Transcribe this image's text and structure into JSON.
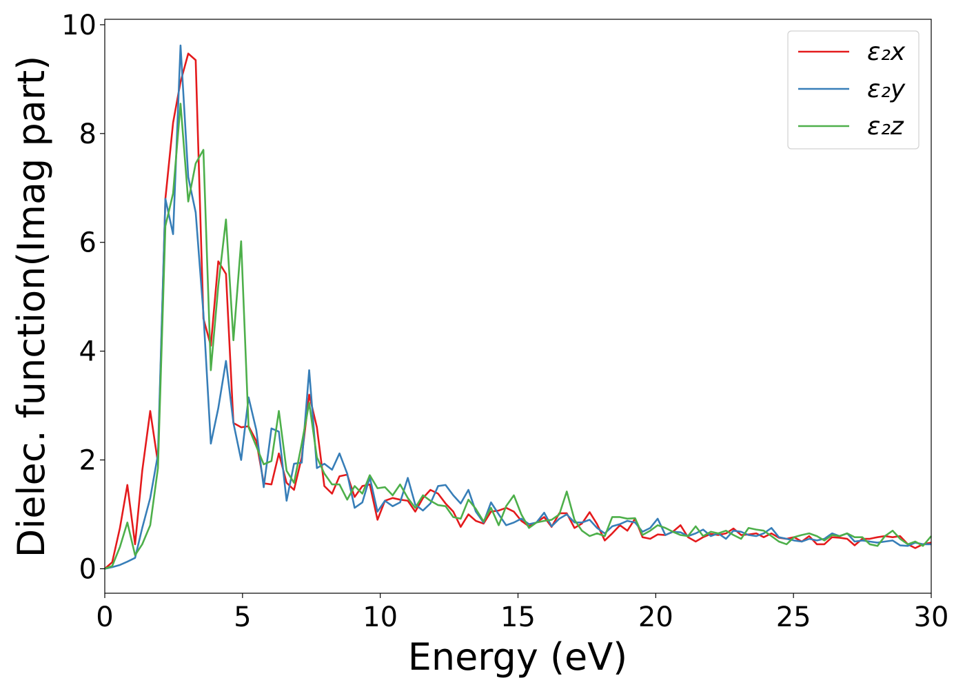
{
  "chart_data": {
    "type": "line",
    "title": "",
    "xlabel": "Energy (eV)",
    "ylabel": "Dielec. function(Imag part)",
    "xlim": [
      0,
      30
    ],
    "ylim": [
      -0.45,
      10.1
    ],
    "xticks": [
      0,
      5,
      10,
      15,
      20,
      25,
      30
    ],
    "yticks": [
      0,
      2,
      4,
      6,
      8,
      10
    ],
    "xtick_labels": [
      "0",
      "5",
      "10",
      "15",
      "20",
      "25",
      "30"
    ],
    "ytick_labels": [
      "0",
      "2",
      "4",
      "6",
      "8",
      "10"
    ],
    "grid": false,
    "legend_position": "top-right",
    "x": [
      0,
      0.27,
      0.55,
      0.82,
      1.1,
      1.36,
      1.65,
      1.93,
      2.2,
      2.48,
      2.75,
      3.03,
      3.3,
      3.58,
      3.85,
      4.12,
      4.4,
      4.67,
      4.95,
      5.22,
      5.5,
      5.77,
      6.05,
      6.32,
      6.6,
      6.87,
      7.15,
      7.42,
      7.7,
      7.97,
      8.25,
      8.52,
      8.8,
      9.07,
      9.35,
      9.62,
      9.9,
      10.17,
      10.45,
      10.72,
      11.0,
      11.27,
      11.55,
      11.82,
      12.1,
      12.37,
      12.65,
      12.92,
      13.2,
      13.47,
      13.75,
      14.02,
      14.3,
      14.57,
      14.85,
      15.12,
      15.4,
      15.67,
      15.95,
      16.22,
      16.5,
      16.77,
      17.05,
      17.32,
      17.6,
      17.87,
      18.15,
      18.42,
      18.7,
      18.97,
      19.25,
      19.52,
      19.8,
      20.07,
      20.35,
      20.62,
      20.9,
      21.17,
      21.45,
      21.72,
      22.0,
      22.27,
      22.55,
      22.82,
      23.1,
      23.37,
      23.65,
      23.92,
      24.2,
      24.47,
      24.75,
      25.02,
      25.3,
      25.57,
      25.85,
      26.12,
      26.4,
      26.67,
      26.95,
      27.22,
      27.5,
      27.77,
      28.05,
      28.32,
      28.6,
      28.87,
      29.15,
      29.42,
      29.7,
      30.0
    ],
    "series": [
      {
        "name": "ε₂x",
        "color": "#e41a1c",
        "values": [
          0.0,
          0.12,
          0.75,
          1.54,
          0.45,
          1.8,
          2.9,
          1.95,
          6.8,
          8.2,
          8.95,
          9.47,
          9.35,
          4.6,
          4.1,
          5.65,
          5.42,
          2.68,
          2.6,
          2.62,
          2.35,
          1.57,
          1.55,
          2.12,
          1.58,
          1.45,
          2.05,
          3.2,
          2.6,
          1.52,
          1.38,
          1.7,
          1.73,
          1.32,
          1.52,
          1.55,
          0.9,
          1.25,
          1.3,
          1.27,
          1.25,
          1.05,
          1.3,
          1.45,
          1.38,
          1.2,
          1.05,
          0.77,
          1.0,
          0.88,
          0.83,
          1.05,
          1.07,
          1.12,
          1.05,
          0.88,
          0.78,
          0.85,
          0.95,
          0.77,
          1.02,
          1.02,
          0.75,
          0.83,
          1.04,
          0.82,
          0.52,
          0.65,
          0.8,
          0.7,
          0.92,
          0.58,
          0.55,
          0.63,
          0.62,
          0.68,
          0.8,
          0.58,
          0.5,
          0.58,
          0.64,
          0.62,
          0.65,
          0.74,
          0.62,
          0.63,
          0.65,
          0.58,
          0.65,
          0.57,
          0.55,
          0.58,
          0.5,
          0.6,
          0.45,
          0.45,
          0.58,
          0.57,
          0.55,
          0.43,
          0.55,
          0.55,
          0.58,
          0.6,
          0.58,
          0.6,
          0.45,
          0.38,
          0.45,
          0.48
        ]
      },
      {
        "name": "ε₂y",
        "color": "#377eb8",
        "values": [
          0.0,
          0.03,
          0.07,
          0.13,
          0.2,
          0.75,
          1.3,
          2.1,
          6.8,
          6.15,
          9.62,
          7.2,
          6.55,
          4.7,
          2.3,
          2.95,
          3.82,
          2.68,
          2.0,
          3.15,
          2.55,
          1.5,
          2.58,
          2.52,
          1.25,
          1.93,
          1.95,
          3.65,
          1.85,
          1.93,
          1.82,
          2.12,
          1.75,
          1.12,
          1.22,
          1.68,
          1.05,
          1.25,
          1.15,
          1.22,
          1.67,
          1.18,
          1.07,
          1.2,
          1.52,
          1.54,
          1.35,
          1.2,
          1.45,
          1.05,
          0.85,
          1.22,
          1.0,
          0.8,
          0.85,
          0.92,
          0.82,
          0.85,
          1.03,
          0.78,
          0.92,
          1.0,
          0.85,
          0.85,
          0.9,
          0.75,
          0.65,
          0.78,
          0.82,
          0.88,
          0.85,
          0.68,
          0.75,
          0.92,
          0.62,
          0.68,
          0.67,
          0.6,
          0.65,
          0.72,
          0.6,
          0.65,
          0.55,
          0.7,
          0.68,
          0.62,
          0.6,
          0.65,
          0.75,
          0.58,
          0.55,
          0.52,
          0.5,
          0.55,
          0.52,
          0.55,
          0.65,
          0.6,
          0.65,
          0.5,
          0.52,
          0.5,
          0.48,
          0.5,
          0.52,
          0.43,
          0.42,
          0.48,
          0.45,
          0.45
        ]
      },
      {
        "name": "ε₂z",
        "color": "#4daf4a",
        "values": [
          0.0,
          0.05,
          0.4,
          0.85,
          0.25,
          0.45,
          0.8,
          1.85,
          6.3,
          6.9,
          8.55,
          6.75,
          7.45,
          7.7,
          3.65,
          5.2,
          6.42,
          4.2,
          6.02,
          2.6,
          2.25,
          1.92,
          1.98,
          2.9,
          1.8,
          1.58,
          2.3,
          3.05,
          2.05,
          1.75,
          1.55,
          1.55,
          1.27,
          1.52,
          1.38,
          1.72,
          1.48,
          1.5,
          1.35,
          1.55,
          1.3,
          1.12,
          1.35,
          1.25,
          1.17,
          1.15,
          0.95,
          0.92,
          1.27,
          1.1,
          0.87,
          1.12,
          0.8,
          1.15,
          1.35,
          1.0,
          0.75,
          0.85,
          0.88,
          0.9,
          1.0,
          1.42,
          0.9,
          0.7,
          0.6,
          0.65,
          0.6,
          0.95,
          0.95,
          0.92,
          0.93,
          0.62,
          0.7,
          0.8,
          0.75,
          0.68,
          0.62,
          0.6,
          0.78,
          0.6,
          0.68,
          0.65,
          0.7,
          0.62,
          0.55,
          0.75,
          0.72,
          0.7,
          0.6,
          0.5,
          0.45,
          0.58,
          0.62,
          0.65,
          0.6,
          0.52,
          0.62,
          0.6,
          0.65,
          0.58,
          0.58,
          0.45,
          0.42,
          0.6,
          0.7,
          0.55,
          0.45,
          0.5,
          0.42,
          0.6
        ]
      }
    ]
  }
}
